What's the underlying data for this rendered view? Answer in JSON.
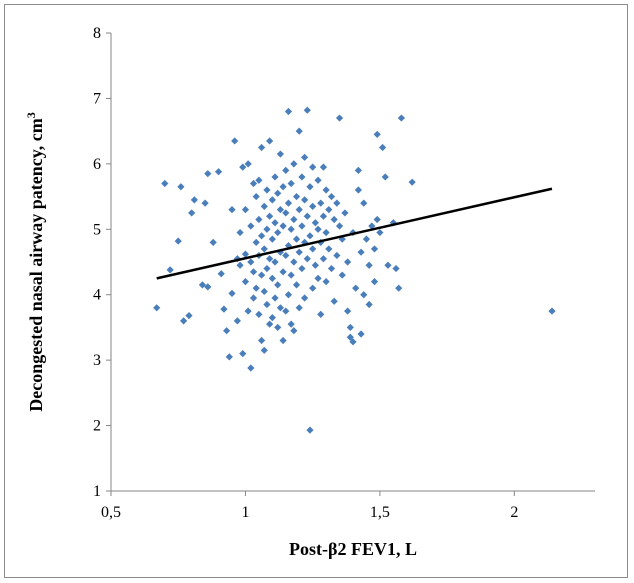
{
  "chart_data": {
    "type": "scatter",
    "xlabel": "Post-β2 FEV1, L",
    "ylabel": "Decongested nasal airway patency, cm",
    "ylabel_sup": "3",
    "xlim": [
      0.5,
      2.3
    ],
    "ylim": [
      1,
      8
    ],
    "x_ticks": [
      0.5,
      1,
      1.5,
      2
    ],
    "x_tick_labels": [
      "0,5",
      "1",
      "1,5",
      "2"
    ],
    "y_ticks": [
      1,
      2,
      3,
      4,
      5,
      6,
      7,
      8
    ],
    "y_tick_labels": [
      "1",
      "2",
      "3",
      "4",
      "5",
      "6",
      "7",
      "8"
    ],
    "grid": false,
    "legend": "none",
    "marker_color": "#4a7ebb",
    "trendline_color": "#000000",
    "trendline": {
      "x": [
        0.67,
        2.14
      ],
      "y": [
        4.25,
        5.62
      ]
    },
    "series": [
      {
        "points": [
          [
            0.67,
            3.8
          ],
          [
            0.7,
            5.7
          ],
          [
            0.72,
            4.38
          ],
          [
            0.75,
            4.82
          ],
          [
            0.76,
            5.65
          ],
          [
            0.77,
            3.6
          ],
          [
            0.79,
            3.68
          ],
          [
            0.8,
            5.25
          ],
          [
            0.81,
            5.45
          ],
          [
            0.84,
            4.15
          ],
          [
            0.85,
            5.4
          ],
          [
            0.86,
            5.85
          ],
          [
            0.86,
            4.12
          ],
          [
            0.88,
            4.8
          ],
          [
            0.9,
            5.88
          ],
          [
            0.91,
            4.32
          ],
          [
            0.92,
            3.78
          ],
          [
            0.93,
            3.45
          ],
          [
            0.94,
            3.05
          ],
          [
            0.95,
            5.3
          ],
          [
            0.95,
            4.02
          ],
          [
            0.96,
            6.35
          ],
          [
            0.97,
            4.55
          ],
          [
            0.97,
            3.6
          ],
          [
            0.98,
            4.95
          ],
          [
            0.98,
            4.45
          ],
          [
            0.99,
            5.95
          ],
          [
            0.99,
            3.1
          ],
          [
            1.0,
            5.3
          ],
          [
            1.0,
            4.62
          ],
          [
            1.0,
            4.2
          ],
          [
            1.01,
            3.75
          ],
          [
            1.01,
            6.0
          ],
          [
            1.02,
            5.05
          ],
          [
            1.02,
            4.5
          ],
          [
            1.02,
            2.88
          ],
          [
            1.03,
            5.7
          ],
          [
            1.03,
            4.35
          ],
          [
            1.03,
            3.95
          ],
          [
            1.04,
            5.5
          ],
          [
            1.04,
            4.8
          ],
          [
            1.04,
            4.1
          ],
          [
            1.05,
            5.75
          ],
          [
            1.05,
            5.15
          ],
          [
            1.05,
            4.6
          ],
          [
            1.05,
            3.7
          ],
          [
            1.06,
            6.25
          ],
          [
            1.06,
            4.9
          ],
          [
            1.06,
            4.3
          ],
          [
            1.06,
            3.3
          ],
          [
            1.07,
            5.35
          ],
          [
            1.07,
            4.7
          ],
          [
            1.07,
            4.05
          ],
          [
            1.07,
            3.15
          ],
          [
            1.08,
            5.6
          ],
          [
            1.08,
            5.0
          ],
          [
            1.08,
            4.4
          ],
          [
            1.08,
            3.85
          ],
          [
            1.09,
            6.35
          ],
          [
            1.09,
            5.2
          ],
          [
            1.09,
            4.55
          ],
          [
            1.09,
            3.55
          ],
          [
            1.1,
            5.45
          ],
          [
            1.1,
            4.85
          ],
          [
            1.1,
            4.25
          ],
          [
            1.1,
            3.65
          ],
          [
            1.11,
            5.8
          ],
          [
            1.11,
            5.1
          ],
          [
            1.11,
            4.5
          ],
          [
            1.11,
            3.95
          ],
          [
            1.12,
            5.55
          ],
          [
            1.12,
            4.95
          ],
          [
            1.12,
            4.15
          ],
          [
            1.12,
            3.5
          ],
          [
            1.13,
            6.15
          ],
          [
            1.13,
            5.3
          ],
          [
            1.13,
            4.65
          ],
          [
            1.13,
            3.8
          ],
          [
            1.14,
            5.65
          ],
          [
            1.14,
            5.05
          ],
          [
            1.14,
            4.35
          ],
          [
            1.14,
            3.3
          ],
          [
            1.15,
            5.9
          ],
          [
            1.15,
            5.25
          ],
          [
            1.15,
            4.6
          ],
          [
            1.15,
            3.75
          ],
          [
            1.16,
            6.8
          ],
          [
            1.16,
            5.4
          ],
          [
            1.16,
            4.75
          ],
          [
            1.16,
            4.0
          ],
          [
            1.17,
            5.7
          ],
          [
            1.17,
            5.0
          ],
          [
            1.17,
            4.3
          ],
          [
            1.17,
            3.55
          ],
          [
            1.18,
            6.0
          ],
          [
            1.18,
            5.15
          ],
          [
            1.18,
            4.5
          ],
          [
            1.18,
            3.45
          ],
          [
            1.19,
            5.5
          ],
          [
            1.19,
            4.85
          ],
          [
            1.19,
            4.15
          ],
          [
            1.2,
            6.5
          ],
          [
            1.2,
            5.3
          ],
          [
            1.2,
            4.65
          ],
          [
            1.2,
            3.8
          ],
          [
            1.21,
            5.8
          ],
          [
            1.21,
            5.05
          ],
          [
            1.21,
            4.4
          ],
          [
            1.22,
            6.1
          ],
          [
            1.22,
            5.45
          ],
          [
            1.22,
            4.8
          ],
          [
            1.22,
            3.95
          ],
          [
            1.23,
            6.82
          ],
          [
            1.23,
            5.2
          ],
          [
            1.23,
            4.55
          ],
          [
            1.24,
            5.65
          ],
          [
            1.24,
            4.9
          ],
          [
            1.24,
            1.93
          ],
          [
            1.25,
            5.95
          ],
          [
            1.25,
            5.35
          ],
          [
            1.25,
            4.7
          ],
          [
            1.25,
            4.1
          ],
          [
            1.26,
            5.1
          ],
          [
            1.26,
            4.45
          ],
          [
            1.27,
            5.75
          ],
          [
            1.27,
            5.0
          ],
          [
            1.27,
            4.25
          ],
          [
            1.28,
            5.4
          ],
          [
            1.28,
            4.8
          ],
          [
            1.28,
            3.7
          ],
          [
            1.29,
            5.95
          ],
          [
            1.29,
            5.2
          ],
          [
            1.29,
            4.55
          ],
          [
            1.3,
            5.6
          ],
          [
            1.3,
            4.95
          ],
          [
            1.3,
            4.2
          ],
          [
            1.31,
            5.3
          ],
          [
            1.31,
            4.7
          ],
          [
            1.32,
            5.5
          ],
          [
            1.32,
            4.4
          ],
          [
            1.33,
            5.15
          ],
          [
            1.33,
            3.9
          ],
          [
            1.34,
            5.4
          ],
          [
            1.34,
            4.6
          ],
          [
            1.35,
            6.7
          ],
          [
            1.35,
            5.05
          ],
          [
            1.36,
            4.85
          ],
          [
            1.36,
            4.3
          ],
          [
            1.37,
            5.25
          ],
          [
            1.38,
            4.5
          ],
          [
            1.38,
            3.75
          ],
          [
            1.39,
            3.5
          ],
          [
            1.39,
            3.35
          ],
          [
            1.4,
            4.95
          ],
          [
            1.4,
            3.28
          ],
          [
            1.41,
            4.1
          ],
          [
            1.42,
            5.6
          ],
          [
            1.42,
            5.9
          ],
          [
            1.43,
            4.65
          ],
          [
            1.43,
            3.4
          ],
          [
            1.44,
            5.4
          ],
          [
            1.44,
            4.0
          ],
          [
            1.45,
            4.85
          ],
          [
            1.46,
            4.45
          ],
          [
            1.46,
            3.85
          ],
          [
            1.47,
            5.05
          ],
          [
            1.48,
            4.7
          ],
          [
            1.48,
            4.2
          ],
          [
            1.49,
            6.45
          ],
          [
            1.49,
            5.15
          ],
          [
            1.5,
            4.95
          ],
          [
            1.51,
            6.25
          ],
          [
            1.52,
            5.8
          ],
          [
            1.53,
            4.45
          ],
          [
            1.55,
            5.1
          ],
          [
            1.56,
            4.4
          ],
          [
            1.57,
            4.1
          ],
          [
            1.58,
            6.7
          ],
          [
            1.62,
            5.72
          ],
          [
            2.14,
            3.75
          ]
        ]
      }
    ]
  }
}
